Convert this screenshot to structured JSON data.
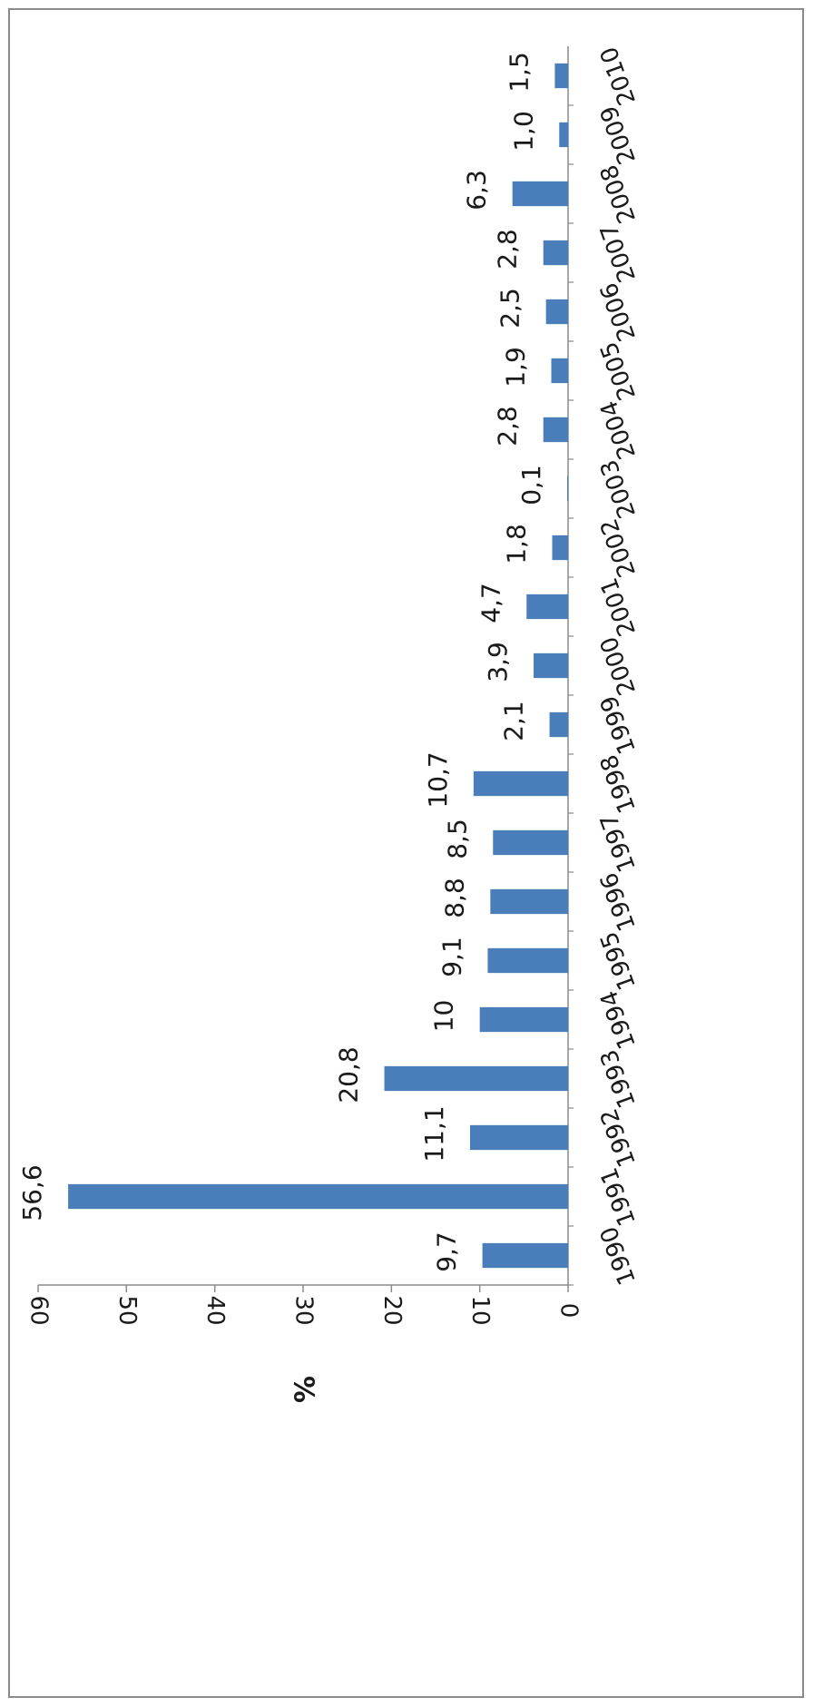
{
  "chart_data": {
    "type": "bar",
    "orientation": "rotated-90-clockwise",
    "categories": [
      "1990",
      "1991",
      "1992",
      "1993",
      "1994",
      "1995",
      "1996",
      "1997",
      "1998",
      "1999",
      "2000",
      "2001",
      "2002",
      "2003",
      "2004",
      "2005",
      "2006",
      "2007",
      "2008",
      "2009",
      "2010"
    ],
    "values": [
      9.7,
      56.6,
      11.1,
      20.8,
      10,
      9.1,
      8.8,
      8.5,
      10.7,
      2.1,
      3.9,
      4.7,
      1.8,
      0.1,
      2.8,
      1.9,
      2.5,
      2.8,
      6.3,
      1.0,
      1.5
    ],
    "value_labels": [
      "9,7",
      "56,6",
      "11,1",
      "20,8",
      "10",
      "9,1",
      "8,8",
      "8,5",
      "10,7",
      "2,1",
      "3,9",
      "4,7",
      "1,8",
      "0,1",
      "2,8",
      "1,9",
      "2,5",
      "2,8",
      "6,3",
      "1,0",
      "1,5"
    ],
    "ylabel": "%",
    "ylim": [
      0,
      60
    ],
    "yticks": [
      0,
      10,
      20,
      30,
      40,
      50,
      60
    ],
    "grid": false,
    "bar_color": "#4a7ebb"
  }
}
